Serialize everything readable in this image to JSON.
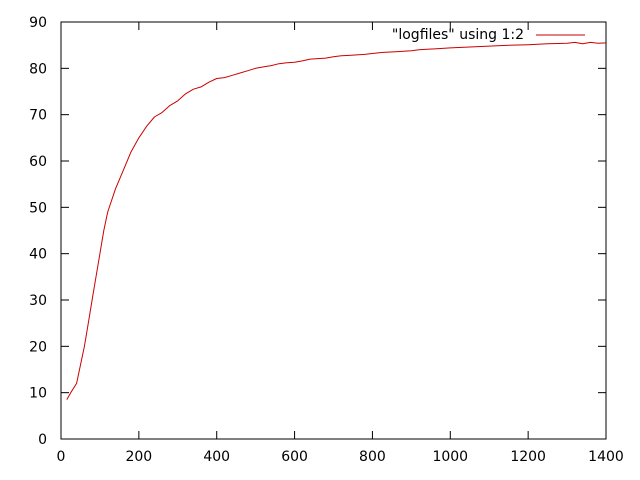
{
  "chart_data": {
    "type": "line",
    "title": "",
    "xlabel": "",
    "ylabel": "",
    "xlim": [
      0,
      1400
    ],
    "ylim": [
      0,
      90
    ],
    "x_ticks": [
      0,
      200,
      400,
      600,
      800,
      1000,
      1200,
      1400
    ],
    "y_ticks": [
      0,
      10,
      20,
      30,
      40,
      50,
      60,
      70,
      80,
      90
    ],
    "x_tick_labels": [
      "0",
      "200",
      "400",
      "600",
      "800",
      "1000",
      "1200",
      "1400"
    ],
    "y_tick_labels": [
      "0",
      "10",
      "20",
      "30",
      "40",
      "50",
      "60",
      "70",
      "80",
      "90"
    ],
    "grid": false,
    "legend": {
      "position": "top-right"
    },
    "series": [
      {
        "name": "\"logfiles\" using 1:2",
        "color": "#cc0000",
        "x": [
          15,
          25,
          40,
          50,
          60,
          70,
          80,
          90,
          100,
          110,
          120,
          140,
          160,
          180,
          200,
          220,
          240,
          260,
          280,
          300,
          320,
          340,
          360,
          380,
          400,
          420,
          440,
          460,
          480,
          500,
          520,
          540,
          560,
          580,
          600,
          620,
          640,
          660,
          680,
          700,
          720,
          740,
          760,
          780,
          800,
          820,
          840,
          860,
          880,
          900,
          920,
          940,
          960,
          980,
          1000,
          1050,
          1100,
          1150,
          1200,
          1250,
          1300,
          1320,
          1340,
          1360,
          1380,
          1400
        ],
        "y": [
          8.5,
          10,
          12,
          16,
          20,
          25,
          30,
          35,
          40,
          45,
          49,
          54,
          58,
          62,
          65,
          67.5,
          69.5,
          70.5,
          72,
          73,
          74.5,
          75.5,
          76,
          77,
          77.8,
          78,
          78.5,
          79,
          79.5,
          80,
          80.3,
          80.6,
          81,
          81.2,
          81.3,
          81.6,
          82,
          82.1,
          82.2,
          82.5,
          82.7,
          82.8,
          82.9,
          83,
          83.2,
          83.4,
          83.5,
          83.6,
          83.7,
          83.8,
          84,
          84.1,
          84.2,
          84.3,
          84.4,
          84.6,
          84.8,
          85,
          85.1,
          85.3,
          85.4,
          85.6,
          85.3,
          85.6,
          85.4,
          85.5
        ]
      }
    ]
  }
}
